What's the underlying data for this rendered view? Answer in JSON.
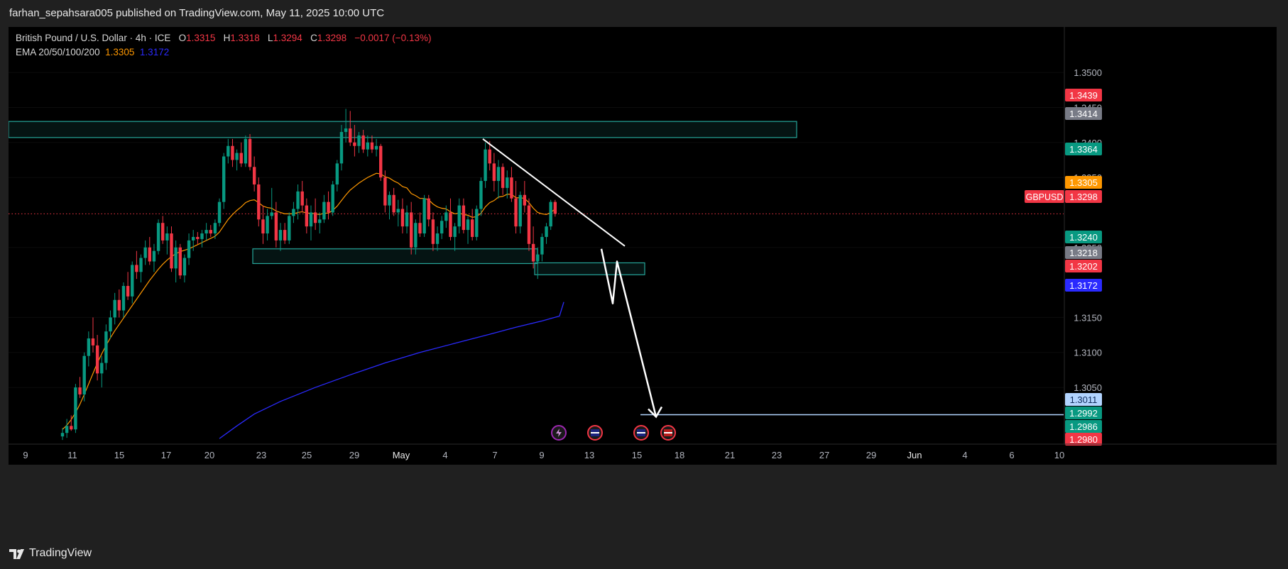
{
  "header": {
    "published_text": "farhan_sepahsara005 published on TradingView.com, May 11, 2025 10:00 UTC"
  },
  "legend": {
    "symbol": "British Pound / U.S. Dollar · 4h · ICE",
    "o_label": "O",
    "o_value": "1.3315",
    "h_label": "H",
    "h_value": "1.3318",
    "l_label": "L",
    "l_value": "1.3294",
    "c_label": "C",
    "c_value": "1.3298",
    "change": "−0.0017 (−0.13%)",
    "ema_label": "EMA 20/50/100/200",
    "ema_value_1": "1.3305",
    "ema_value_2": "1.3172"
  },
  "footer": {
    "brand": "TradingView"
  },
  "colors": {
    "up": "#089981",
    "down": "#f23645",
    "ema_fast": "#ff9800",
    "ema_slow": "#2a2aff",
    "zone": "#26a69a",
    "target_line": "#b2d4ff",
    "drawing": "#ffffff"
  },
  "chart_data": {
    "type": "candlestick",
    "symbol": "GBPUSD",
    "timeframe": "4h",
    "x_tick_labels": [
      "9",
      "11",
      "15",
      "17",
      "20",
      "23",
      "25",
      "29",
      "May",
      "4",
      "7",
      "9",
      "13",
      "15",
      "18",
      "21",
      "23",
      "27",
      "29",
      "Jun",
      "4",
      "6",
      "10"
    ],
    "y_tick_labels": [
      "1.3500",
      "1.3450",
      "1.3400",
      "1.3350",
      "1.3250",
      "1.3150",
      "1.3100",
      "1.3050"
    ],
    "y_ticks": [
      1.35,
      1.345,
      1.34,
      1.335,
      1.325,
      1.315,
      1.31,
      1.305
    ],
    "ylim": [
      1.297,
      1.3565
    ],
    "current_price": 1.3298,
    "price_labels": [
      {
        "text": "1.3439",
        "value": 1.3439,
        "color": "#f23645",
        "kind": "high"
      },
      {
        "text": "1.3414",
        "value": 1.3414,
        "color": "#787b86",
        "kind": "grey"
      },
      {
        "text": "1.3364",
        "value": 1.3364,
        "color": "#089981",
        "kind": "zone"
      },
      {
        "text": "1.3305",
        "value": 1.3305,
        "color": "#ff9800",
        "kind": "ema"
      },
      {
        "text": "1.3298",
        "value": 1.3298,
        "color": "#f23645",
        "kind": "last",
        "symbol": "GBPUSD"
      },
      {
        "text": "1.3240",
        "value": 1.324,
        "color": "#089981",
        "kind": "zone"
      },
      {
        "text": "1.3218",
        "value": 1.3218,
        "color": "#787b86",
        "kind": "grey"
      },
      {
        "text": "1.3202",
        "value": 1.3202,
        "color": "#f23645",
        "kind": "low"
      },
      {
        "text": "1.3172",
        "value": 1.3172,
        "color": "#2a2aff",
        "kind": "ema"
      },
      {
        "text": "1.3011",
        "value": 1.3011,
        "color": "#b2d4ff",
        "kind": "target"
      },
      {
        "text": "1.2992",
        "value": 1.2992,
        "color": "#089981",
        "kind": "zone"
      },
      {
        "text": "1.2986",
        "value": 1.2986,
        "color": "#089981",
        "kind": "zone"
      },
      {
        "text": "1.2980",
        "value": 1.298,
        "color": "#f23645",
        "kind": "low"
      }
    ],
    "zones": [
      {
        "name": "resistance-zone",
        "top": 1.343,
        "bottom": 1.3407
      },
      {
        "name": "support-zone",
        "top": 1.3248,
        "bottom": 1.3227
      },
      {
        "name": "retest-zone",
        "top": 1.3228,
        "bottom": 1.3211
      }
    ],
    "target_level": 1.3011,
    "candles": [
      [
        1.298,
        1.2992,
        1.2975,
        1.2985
      ],
      [
        1.2985,
        1.3005,
        1.2978,
        1.2995
      ],
      [
        1.2995,
        1.301,
        1.2988,
        1.299
      ],
      [
        1.299,
        1.3055,
        1.2985,
        1.305
      ],
      [
        1.305,
        1.3065,
        1.3035,
        1.304
      ],
      [
        1.304,
        1.31,
        1.303,
        1.3095
      ],
      [
        1.3095,
        1.313,
        1.308,
        1.312
      ],
      [
        1.312,
        1.315,
        1.31,
        1.311
      ],
      [
        1.311,
        1.3125,
        1.306,
        1.307
      ],
      [
        1.307,
        1.3095,
        1.305,
        1.3085
      ],
      [
        1.3085,
        1.314,
        1.3075,
        1.313
      ],
      [
        1.313,
        1.316,
        1.312,
        1.315
      ],
      [
        1.315,
        1.3185,
        1.314,
        1.3175
      ],
      [
        1.3175,
        1.319,
        1.315,
        1.316
      ],
      [
        1.316,
        1.32,
        1.315,
        1.3195
      ],
      [
        1.3195,
        1.3215,
        1.3175,
        1.318
      ],
      [
        1.318,
        1.323,
        1.317,
        1.3225
      ],
      [
        1.3225,
        1.3245,
        1.3205,
        1.3215
      ],
      [
        1.3215,
        1.324,
        1.32,
        1.3235
      ],
      [
        1.3235,
        1.326,
        1.3225,
        1.325
      ],
      [
        1.325,
        1.3265,
        1.3225,
        1.323
      ],
      [
        1.323,
        1.3255,
        1.3215,
        1.3245
      ],
      [
        1.3245,
        1.329,
        1.324,
        1.3285
      ],
      [
        1.3285,
        1.3295,
        1.3255,
        1.326
      ],
      [
        1.326,
        1.328,
        1.324,
        1.327
      ],
      [
        1.327,
        1.328,
        1.3215,
        1.322
      ],
      [
        1.322,
        1.326,
        1.32,
        1.325
      ],
      [
        1.325,
        1.3255,
        1.3205,
        1.321
      ],
      [
        1.321,
        1.324,
        1.32,
        1.3235
      ],
      [
        1.3235,
        1.327,
        1.3225,
        1.326
      ],
      [
        1.326,
        1.3275,
        1.3245,
        1.3265
      ],
      [
        1.3265,
        1.3272,
        1.3255,
        1.3262
      ],
      [
        1.3262,
        1.3275,
        1.325,
        1.327
      ],
      [
        1.327,
        1.3285,
        1.326,
        1.3275
      ],
      [
        1.3275,
        1.3282,
        1.3265,
        1.327
      ],
      [
        1.327,
        1.329,
        1.3262,
        1.3285
      ],
      [
        1.3285,
        1.332,
        1.328,
        1.3315
      ],
      [
        1.3315,
        1.3385,
        1.3305,
        1.338
      ],
      [
        1.338,
        1.3405,
        1.337,
        1.3395
      ],
      [
        1.3395,
        1.3405,
        1.3365,
        1.3375
      ],
      [
        1.3375,
        1.339,
        1.336,
        1.3385
      ],
      [
        1.3385,
        1.34,
        1.3365,
        1.337
      ],
      [
        1.337,
        1.341,
        1.3365,
        1.3405
      ],
      [
        1.3405,
        1.3412,
        1.336,
        1.3365
      ],
      [
        1.3365,
        1.338,
        1.333,
        1.334
      ],
      [
        1.334,
        1.335,
        1.328,
        1.329
      ],
      [
        1.329,
        1.331,
        1.3255,
        1.327
      ],
      [
        1.327,
        1.3305,
        1.326,
        1.3295
      ],
      [
        1.3295,
        1.3335,
        1.329,
        1.33
      ],
      [
        1.33,
        1.3315,
        1.325,
        1.326
      ],
      [
        1.326,
        1.3285,
        1.3245,
        1.3275
      ],
      [
        1.3275,
        1.3285,
        1.3255,
        1.326
      ],
      [
        1.326,
        1.33,
        1.3255,
        1.3295
      ],
      [
        1.3295,
        1.3315,
        1.3285,
        1.3305
      ],
      [
        1.3305,
        1.334,
        1.329,
        1.333
      ],
      [
        1.333,
        1.3345,
        1.33,
        1.331
      ],
      [
        1.331,
        1.332,
        1.327,
        1.328
      ],
      [
        1.328,
        1.331,
        1.326,
        1.33
      ],
      [
        1.33,
        1.332,
        1.3275,
        1.3285
      ],
      [
        1.3285,
        1.33,
        1.327,
        1.329
      ],
      [
        1.329,
        1.3325,
        1.3285,
        1.3315
      ],
      [
        1.3315,
        1.333,
        1.329,
        1.33
      ],
      [
        1.33,
        1.3345,
        1.3295,
        1.334
      ],
      [
        1.334,
        1.3375,
        1.333,
        1.337
      ],
      [
        1.337,
        1.3425,
        1.336,
        1.3415
      ],
      [
        1.3415,
        1.3448,
        1.34,
        1.342
      ],
      [
        1.342,
        1.3445,
        1.3395,
        1.34
      ],
      [
        1.34,
        1.3425,
        1.338,
        1.3395
      ],
      [
        1.3395,
        1.3415,
        1.3385,
        1.341
      ],
      [
        1.341,
        1.3418,
        1.3385,
        1.339
      ],
      [
        1.339,
        1.341,
        1.338,
        1.34
      ],
      [
        1.34,
        1.341,
        1.3385,
        1.339
      ],
      [
        1.339,
        1.3405,
        1.338,
        1.3395
      ],
      [
        1.3395,
        1.3398,
        1.3345,
        1.335
      ],
      [
        1.335,
        1.336,
        1.33,
        1.331
      ],
      [
        1.331,
        1.333,
        1.329,
        1.3325
      ],
      [
        1.3325,
        1.3335,
        1.3295,
        1.33
      ],
      [
        1.33,
        1.3318,
        1.328,
        1.3305
      ],
      [
        1.3305,
        1.332,
        1.327,
        1.328
      ],
      [
        1.328,
        1.331,
        1.327,
        1.33
      ],
      [
        1.33,
        1.3315,
        1.324,
        1.325
      ],
      [
        1.325,
        1.329,
        1.324,
        1.3285
      ],
      [
        1.3285,
        1.33,
        1.3265,
        1.327
      ],
      [
        1.327,
        1.3325,
        1.3265,
        1.332
      ],
      [
        1.332,
        1.3325,
        1.328,
        1.329
      ],
      [
        1.329,
        1.33,
        1.3245,
        1.3255
      ],
      [
        1.3255,
        1.328,
        1.3245,
        1.327
      ],
      [
        1.327,
        1.3295,
        1.3262,
        1.3288
      ],
      [
        1.3288,
        1.331,
        1.3278,
        1.33
      ],
      [
        1.33,
        1.332,
        1.326,
        1.3265
      ],
      [
        1.3265,
        1.3285,
        1.3245,
        1.328
      ],
      [
        1.328,
        1.332,
        1.327,
        1.331
      ],
      [
        1.331,
        1.332,
        1.327,
        1.3275
      ],
      [
        1.3275,
        1.3295,
        1.3255,
        1.329
      ],
      [
        1.329,
        1.3305,
        1.326,
        1.3265
      ],
      [
        1.3265,
        1.331,
        1.326,
        1.3305
      ],
      [
        1.3305,
        1.335,
        1.3295,
        1.3345
      ],
      [
        1.3345,
        1.34,
        1.3335,
        1.339
      ],
      [
        1.339,
        1.3402,
        1.336,
        1.337
      ],
      [
        1.337,
        1.3385,
        1.333,
        1.3345
      ],
      [
        1.3345,
        1.3375,
        1.332,
        1.3365
      ],
      [
        1.3365,
        1.337,
        1.3325,
        1.3335
      ],
      [
        1.3335,
        1.336,
        1.332,
        1.335
      ],
      [
        1.335,
        1.3365,
        1.3315,
        1.332
      ],
      [
        1.332,
        1.3345,
        1.327,
        1.328
      ],
      [
        1.328,
        1.333,
        1.327,
        1.3325
      ],
      [
        1.3325,
        1.3345,
        1.33,
        1.331
      ],
      [
        1.331,
        1.332,
        1.3245,
        1.3255
      ],
      [
        1.3255,
        1.328,
        1.322,
        1.323
      ],
      [
        1.323,
        1.325,
        1.3205,
        1.324
      ],
      [
        1.324,
        1.327,
        1.323,
        1.3265
      ],
      [
        1.3265,
        1.3285,
        1.3255,
        1.328
      ],
      [
        1.328,
        1.3318,
        1.3275,
        1.3315
      ],
      [
        1.3315,
        1.3318,
        1.3294,
        1.3298
      ]
    ],
    "ema_fast": [
      1.299,
      1.2996,
      1.3004,
      1.3014,
      1.3026,
      1.304,
      1.3055,
      1.307,
      1.3085,
      1.3098,
      1.311,
      1.3121,
      1.3131,
      1.314,
      1.3149,
      1.3158,
      1.3167,
      1.3176,
      1.3185,
      1.3194,
      1.3203,
      1.3211,
      1.3219,
      1.3226,
      1.3232,
      1.3237,
      1.3241,
      1.3244,
      1.3246,
      1.3248,
      1.3251,
      1.3254,
      1.3257,
      1.326,
      1.3263,
      1.3266,
      1.3272,
      1.3281,
      1.329,
      1.3297,
      1.3303,
      1.3308,
      1.3314,
      1.3317,
      1.3318,
      1.3314,
      1.3309,
      1.3307,
      1.3306,
      1.3302,
      1.33,
      1.3298,
      1.3298,
      1.3298,
      1.33,
      1.3301,
      1.3299,
      1.3299,
      1.3298,
      1.3297,
      1.3299,
      1.3299,
      1.3303,
      1.3309,
      1.3317,
      1.3325,
      1.3332,
      1.3337,
      1.3342,
      1.3346,
      1.335,
      1.3353,
      1.3356,
      1.3355,
      1.3351,
      1.3349,
      1.3345,
      1.3342,
      1.3337,
      1.3335,
      1.3327,
      1.3324,
      1.332,
      1.332,
      1.3318,
      1.3312,
      1.3308,
      1.3306,
      1.3305,
      1.3301,
      1.3298,
      1.3299,
      1.3297,
      1.3296,
      1.3293,
      1.3294,
      1.3299,
      1.3308,
      1.3314,
      1.3317,
      1.3322,
      1.3323,
      1.3326,
      1.3326,
      1.3321,
      1.3321,
      1.332,
      1.3314,
      1.3306,
      1.33,
      1.3298,
      1.3297,
      1.33,
      1.3305
    ],
    "ema_slow_points": [
      [
        36,
        1.2977
      ],
      [
        40,
        1.2995
      ],
      [
        44,
        1.3012
      ],
      [
        50,
        1.303
      ],
      [
        58,
        1.305
      ],
      [
        66,
        1.3068
      ],
      [
        74,
        1.3085
      ],
      [
        82,
        1.31
      ],
      [
        90,
        1.3113
      ],
      [
        98,
        1.3126
      ],
      [
        104,
        1.3136
      ],
      [
        110,
        1.3145
      ],
      [
        114,
        1.3152
      ],
      [
        115,
        1.3172
      ]
    ],
    "projection_points": [
      [
        1.3248,
        1
      ],
      [
        1.3172,
        3
      ],
      [
        1.323,
        4
      ],
      [
        1.3005,
        10
      ]
    ],
    "trendline": {
      "from": [
        1.3405,
        96
      ],
      "to": [
        1.3252,
        130
      ]
    },
    "event_icons": [
      "lightning-icon",
      "uk-flag-icon",
      "uk-flag-icon",
      "us-flag-icon"
    ]
  }
}
